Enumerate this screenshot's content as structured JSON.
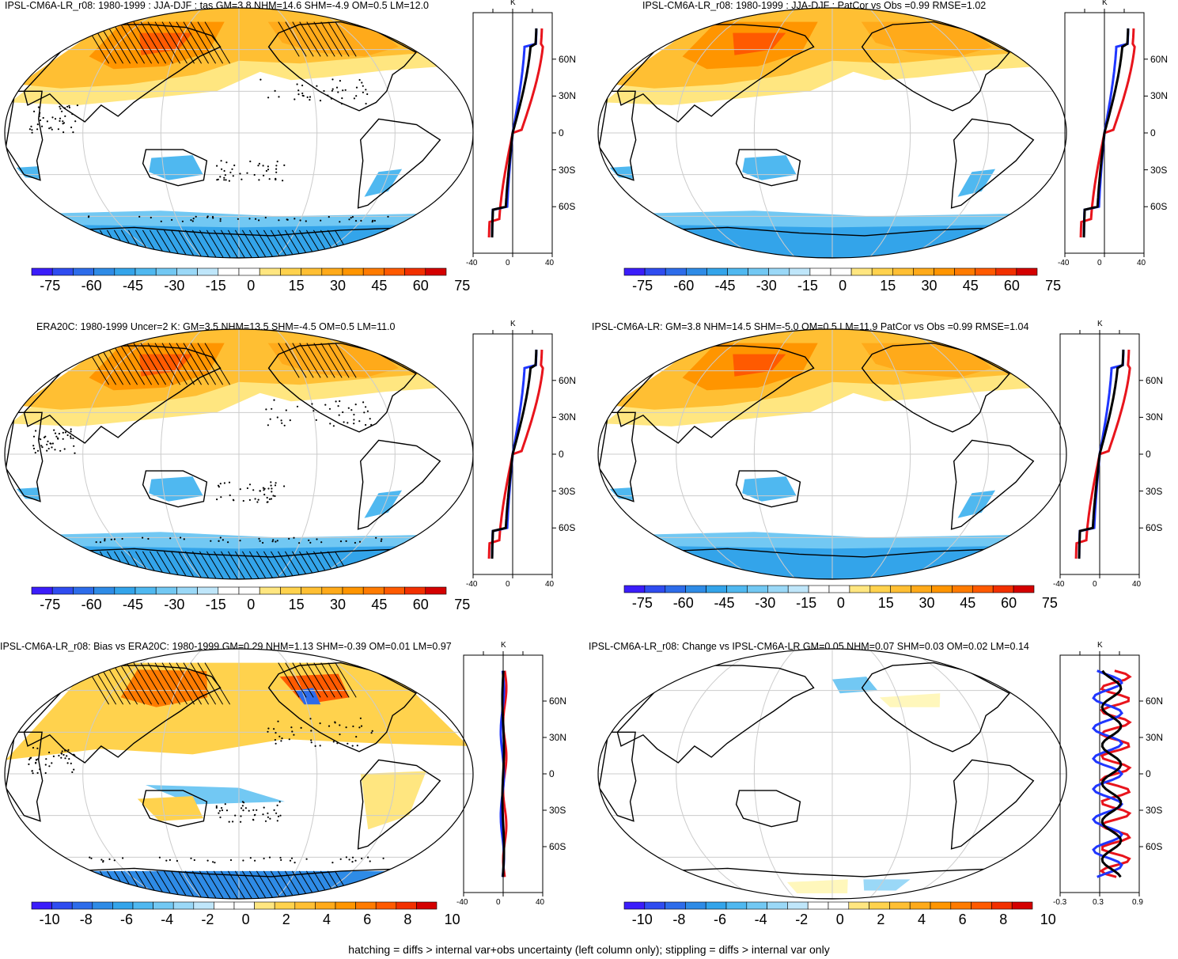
{
  "footer": "hatching = diffs > internal var+obs uncertainty (left column only); stippling = diffs > internal var only",
  "profile_unit": "K",
  "colors": {
    "warm": [
      "#fff7bc",
      "#ffe680",
      "#ffd24d",
      "#ffbf33",
      "#ffaa1a",
      "#ff9500",
      "#ff7b00",
      "#ff5a00",
      "#f23000",
      "#d40000"
    ],
    "cool": [
      "#3b1dfa",
      "#2f4cf0",
      "#2d6cea",
      "#2e8be6",
      "#33a4ea",
      "#4fb8f0",
      "#72c8f3",
      "#9ad8f7",
      "#bfe6fa",
      "#e6f4fd"
    ],
    "blue_line": "#1f36ff",
    "red_line": "#e8141c",
    "black_line": "#000000",
    "grid": "#cccccc"
  },
  "panels": [
    {
      "title": "IPSL-CM6A-LR_r08: 1980-1999 : JJA-DJF : tas GM=3.8 NHM=14.6 SHM=-4.9 OM=0.5 LM=12.0",
      "colorbar_labels": [
        "-75",
        "-60",
        "-45",
        "-30",
        "-15",
        "0",
        "15",
        "30",
        "45",
        "60",
        "75"
      ],
      "lat_labels": [
        "60N",
        "30N",
        "0",
        "30S",
        "60S"
      ],
      "x_labels": [
        "-40",
        "0",
        "40"
      ],
      "hatch": true,
      "stipple": true,
      "type": "field"
    },
    {
      "title": "IPSL-CM6A-LR_r08: 1980-1999 : JJA-DJF : PatCor vs Obs =0.99 RMSE=1.02",
      "colorbar_labels": [
        "-75",
        "-60",
        "-45",
        "-30",
        "-15",
        "0",
        "15",
        "30",
        "45",
        "60",
        "75"
      ],
      "lat_labels": [
        "60N",
        "30N",
        "0",
        "30S",
        "60S"
      ],
      "x_labels": [
        "-40",
        "0",
        "40"
      ],
      "hatch": false,
      "stipple": false,
      "type": "field"
    },
    {
      "title": "ERA20C: 1980-1999 Uncer=2 K: GM=3.5 NHM=13.5 SHM=-4.5 OM=0.5 LM=11.0",
      "colorbar_labels": [
        "-75",
        "-60",
        "-45",
        "-30",
        "-15",
        "0",
        "15",
        "30",
        "45",
        "60",
        "75"
      ],
      "lat_labels": [
        "60N",
        "30N",
        "0",
        "30S",
        "60S"
      ],
      "x_labels": [
        "-40",
        "0",
        "40"
      ],
      "hatch": true,
      "stipple": true,
      "type": "field"
    },
    {
      "title": "IPSL-CM6A-LR: GM=3.8 NHM=14.5 SHM=-5.0 OM=0.5 LM=11.9 PatCor vs Obs =0.99 RMSE=1.04",
      "colorbar_labels": [
        "-75",
        "-60",
        "-45",
        "-30",
        "-15",
        "0",
        "15",
        "30",
        "45",
        "60",
        "75"
      ],
      "lat_labels": [
        "60N",
        "30N",
        "0",
        "30S",
        "60S"
      ],
      "x_labels": [
        "-40",
        "0",
        "40"
      ],
      "hatch": false,
      "stipple": false,
      "type": "field"
    },
    {
      "title": "IPSL-CM6A-LR_r08: Bias vs ERA20C: 1980-1999 GM=0.29 NHM=1.13 SHM=-0.39 OM=0.01 LM=0.97",
      "colorbar_labels": [
        "-10",
        "-8",
        "-6",
        "-4",
        "-2",
        "0",
        "2",
        "4",
        "6",
        "8",
        "10"
      ],
      "lat_labels": [
        "60N",
        "30N",
        "0",
        "30S",
        "60S"
      ],
      "x_labels": [
        "-40",
        "0",
        "40"
      ],
      "hatch": true,
      "stipple": true,
      "type": "bias"
    },
    {
      "title": "IPSL-CM6A-LR_r08: Change vs IPSL-CM6A-LR GM=0.05 NHM=0.07 SHM=0.03 OM=0.02 LM=0.14",
      "colorbar_labels": [
        "-10",
        "-8",
        "-6",
        "-4",
        "-2",
        "0",
        "2",
        "4",
        "6",
        "8",
        "10"
      ],
      "lat_labels": [
        "60N",
        "30N",
        "0",
        "30S",
        "60S"
      ],
      "x_labels": [
        "-0.3",
        "0.3",
        "0.9"
      ],
      "hatch": false,
      "stipple": false,
      "type": "change"
    }
  ]
}
